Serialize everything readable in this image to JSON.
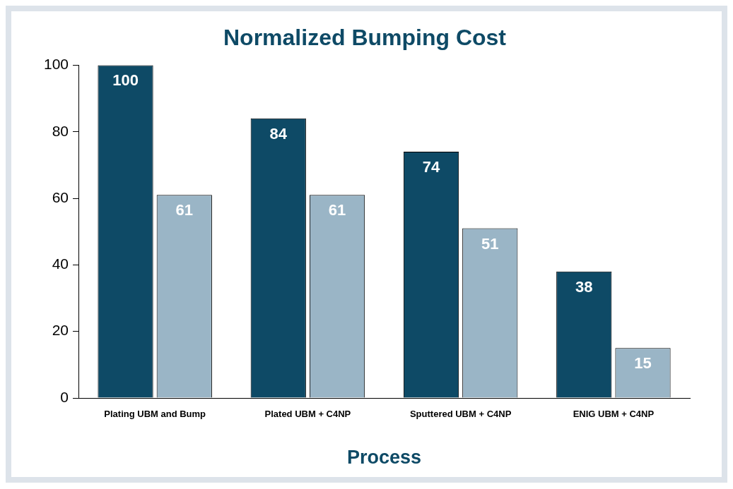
{
  "chart_data": {
    "type": "bar",
    "title": "Normalized Bumping Cost",
    "xlabel": "Process",
    "categories": [
      "Plating UBM and Bump",
      "Plated UBM + C4NP",
      "Sputtered UBM + C4NP",
      "ENIG UBM + C4NP"
    ],
    "series": [
      {
        "color": "#0e4a66",
        "values": [
          100,
          84,
          74,
          38
        ]
      },
      {
        "color": "#9ab5c6",
        "values": [
          61,
          61,
          51,
          15
        ]
      }
    ],
    "ylim": [
      0,
      100
    ],
    "yticks": [
      0,
      20,
      40,
      60,
      80,
      100
    ],
    "grid": false,
    "legend": false,
    "data_labels": true
  }
}
